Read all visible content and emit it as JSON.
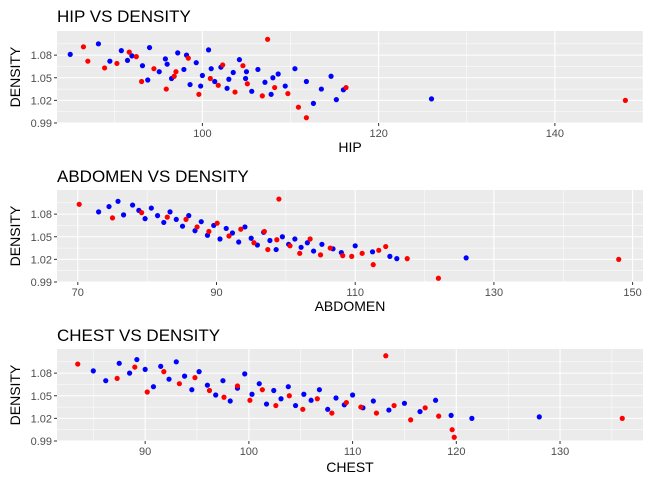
{
  "colors": {
    "panel_bg": "#ebebeb",
    "grid_major": "#ffffff",
    "series_a": "#ff0000",
    "series_b": "#0000ff",
    "tick_text": "#4d4d4d"
  },
  "chart_data": [
    {
      "type": "scatter",
      "title": "HIP VS DENSITY",
      "xlabel": "HIP",
      "ylabel": "DENSITY",
      "xlim": [
        83.5,
        150
      ],
      "ylim": [
        0.99,
        1.112
      ],
      "xticks": [
        100,
        120,
        140
      ],
      "xtick_labels": [
        "100",
        "120",
        "140"
      ],
      "yticks": [
        0.99,
        1.02,
        1.05,
        1.08
      ],
      "ytick_labels": [
        "0.99",
        "1.02",
        "1.05",
        "1.08"
      ],
      "grid": true,
      "legend": "none",
      "series": [
        {
          "color": "#0000ff",
          "points": [
            [
              85.0,
              1.081
            ],
            [
              88.2,
              1.095
            ],
            [
              89.5,
              1.072
            ],
            [
              90.8,
              1.086
            ],
            [
              92.0,
              1.079
            ],
            [
              93.2,
              1.066
            ],
            [
              94.0,
              1.09
            ],
            [
              95.1,
              1.058
            ],
            [
              95.8,
              1.075
            ],
            [
              96.5,
              1.049
            ],
            [
              97.2,
              1.083
            ],
            [
              97.9,
              1.061
            ],
            [
              98.6,
              1.041
            ],
            [
              99.3,
              1.07
            ],
            [
              100.0,
              1.053
            ],
            [
              100.7,
              1.087
            ],
            [
              101.4,
              1.045
            ],
            [
              102.1,
              1.064
            ],
            [
              102.8,
              1.036
            ],
            [
              103.5,
              1.057
            ],
            [
              104.2,
              1.074
            ],
            [
              104.9,
              1.049
            ],
            [
              105.6,
              1.032
            ],
            [
              106.3,
              1.061
            ],
            [
              107.1,
              1.044
            ],
            [
              107.8,
              1.028
            ],
            [
              108.6,
              1.055
            ],
            [
              109.4,
              1.039
            ],
            [
              110.5,
              1.062
            ],
            [
              111.8,
              1.045
            ],
            [
              112.6,
              1.016
            ],
            [
              113.5,
              1.035
            ],
            [
              114.6,
              1.052
            ],
            [
              115.2,
              1.021
            ],
            [
              116.0,
              1.034
            ],
            [
              126.0,
              1.022
            ],
            [
              91.5,
              1.073
            ],
            [
              93.8,
              1.047
            ],
            [
              96.0,
              1.068
            ],
            [
              98.2,
              1.08
            ],
            [
              99.8,
              1.039
            ],
            [
              101.0,
              1.062
            ],
            [
              103.0,
              1.048
            ],
            [
              105.0,
              1.058
            ],
            [
              108.0,
              1.05
            ]
          ]
        },
        {
          "color": "#ff0000",
          "points": [
            [
              86.5,
              1.091
            ],
            [
              87.0,
              1.072
            ],
            [
              88.9,
              1.063
            ],
            [
              90.3,
              1.069
            ],
            [
              91.7,
              1.084
            ],
            [
              93.1,
              1.045
            ],
            [
              94.5,
              1.062
            ],
            [
              95.9,
              1.035
            ],
            [
              97.0,
              1.058
            ],
            [
              98.4,
              1.076
            ],
            [
              99.6,
              1.028
            ],
            [
              100.9,
              1.049
            ],
            [
              102.3,
              1.067
            ],
            [
              103.7,
              1.031
            ],
            [
              105.1,
              1.042
            ],
            [
              106.8,
              1.026
            ],
            [
              108.2,
              1.037
            ],
            [
              109.7,
              1.029
            ],
            [
              110.9,
              1.011
            ],
            [
              111.8,
              0.997
            ],
            [
              116.3,
              1.037
            ],
            [
              148.0,
              1.02
            ],
            [
              92.5,
              1.078
            ],
            [
              96.8,
              1.052
            ],
            [
              101.8,
              1.04
            ],
            [
              104.6,
              1.066
            ],
            [
              107.4,
              1.101
            ]
          ]
        }
      ]
    },
    {
      "type": "scatter",
      "title": "ABDOMEN VS DENSITY",
      "xlabel": "ABDOMEN",
      "ylabel": "DENSITY",
      "xlim": [
        67,
        151.5
      ],
      "ylim": [
        0.99,
        1.112
      ],
      "xticks": [
        70,
        90,
        110,
        130,
        150
      ],
      "xtick_labels": [
        "70",
        "90",
        "110",
        "130",
        "150"
      ],
      "yticks": [
        0.99,
        1.02,
        1.05,
        1.08
      ],
      "ytick_labels": [
        "0.99",
        "1.02",
        "1.05",
        "1.08"
      ],
      "grid": true,
      "legend": "none",
      "series": [
        {
          "color": "#0000ff",
          "points": [
            [
              73.0,
              1.083
            ],
            [
              74.5,
              1.09
            ],
            [
              75.8,
              1.097
            ],
            [
              76.6,
              1.079
            ],
            [
              77.9,
              1.092
            ],
            [
              78.8,
              1.085
            ],
            [
              79.7,
              1.074
            ],
            [
              80.6,
              1.088
            ],
            [
              81.5,
              1.078
            ],
            [
              82.4,
              1.069
            ],
            [
              83.3,
              1.083
            ],
            [
              84.2,
              1.073
            ],
            [
              85.1,
              1.064
            ],
            [
              86.0,
              1.078
            ],
            [
              86.9,
              1.058
            ],
            [
              87.8,
              1.07
            ],
            [
              88.7,
              1.052
            ],
            [
              89.6,
              1.065
            ],
            [
              90.5,
              1.047
            ],
            [
              91.4,
              1.061
            ],
            [
              92.3,
              1.055
            ],
            [
              93.2,
              1.043
            ],
            [
              94.1,
              1.063
            ],
            [
              95.0,
              1.048
            ],
            [
              95.9,
              1.039
            ],
            [
              96.8,
              1.056
            ],
            [
              97.7,
              1.045
            ],
            [
              98.6,
              1.033
            ],
            [
              99.5,
              1.05
            ],
            [
              100.4,
              1.04
            ],
            [
              101.3,
              1.047
            ],
            [
              102.2,
              1.036
            ],
            [
              103.1,
              1.042
            ],
            [
              104.0,
              1.031
            ],
            [
              105.2,
              1.04
            ],
            [
              106.8,
              1.034
            ],
            [
              108.0,
              1.029
            ],
            [
              110.0,
              1.038
            ],
            [
              112.5,
              1.03
            ],
            [
              115.0,
              1.024
            ],
            [
              116.0,
              1.021
            ],
            [
              126.0,
              1.022
            ]
          ]
        },
        {
          "color": "#ff0000",
          "points": [
            [
              70.2,
              1.093
            ],
            [
              75.0,
              1.075
            ],
            [
              79.2,
              1.082
            ],
            [
              82.9,
              1.076
            ],
            [
              85.6,
              1.073
            ],
            [
              87.2,
              1.063
            ],
            [
              88.9,
              1.057
            ],
            [
              90.1,
              1.068
            ],
            [
              91.8,
              1.051
            ],
            [
              93.5,
              1.06
            ],
            [
              95.4,
              1.042
            ],
            [
              96.9,
              1.057
            ],
            [
              97.4,
              1.033
            ],
            [
              98.7,
              1.046
            ],
            [
              99.0,
              1.1
            ],
            [
              100.6,
              1.038
            ],
            [
              102.0,
              1.028
            ],
            [
              103.5,
              1.047
            ],
            [
              105.0,
              1.026
            ],
            [
              106.4,
              1.035
            ],
            [
              108.2,
              1.025
            ],
            [
              109.5,
              1.024
            ],
            [
              111.0,
              1.028
            ],
            [
              112.6,
              1.013
            ],
            [
              113.4,
              1.032
            ],
            [
              114.4,
              1.037
            ],
            [
              117.5,
              1.021
            ],
            [
              122.0,
              0.995
            ],
            [
              148.0,
              1.02
            ]
          ]
        }
      ]
    },
    {
      "type": "scatter",
      "title": "CHEST VS DENSITY",
      "xlabel": "CHEST",
      "ylabel": "DENSITY",
      "xlim": [
        81.5,
        138
      ],
      "ylim": [
        0.99,
        1.112
      ],
      "xticks": [
        90,
        100,
        110,
        120,
        130
      ],
      "xtick_labels": [
        "90",
        "100",
        "110",
        "120",
        "130"
      ],
      "yticks": [
        0.99,
        1.02,
        1.05,
        1.08
      ],
      "ytick_labels": [
        "0.99",
        "1.02",
        "1.05",
        "1.08"
      ],
      "grid": true,
      "legend": "none",
      "series": [
        {
          "color": "#0000ff",
          "points": [
            [
              85.0,
              1.083
            ],
            [
              86.2,
              1.07
            ],
            [
              87.5,
              1.093
            ],
            [
              88.5,
              1.08
            ],
            [
              89.2,
              1.098
            ],
            [
              90.0,
              1.085
            ],
            [
              90.8,
              1.062
            ],
            [
              91.5,
              1.089
            ],
            [
              92.3,
              1.072
            ],
            [
              93.0,
              1.095
            ],
            [
              93.8,
              1.076
            ],
            [
              94.5,
              1.058
            ],
            [
              95.2,
              1.082
            ],
            [
              96.0,
              1.064
            ],
            [
              96.8,
              1.051
            ],
            [
              97.5,
              1.07
            ],
            [
              98.2,
              1.043
            ],
            [
              98.9,
              1.06
            ],
            [
              99.6,
              1.079
            ],
            [
              100.3,
              1.052
            ],
            [
              101.0,
              1.066
            ],
            [
              101.7,
              1.039
            ],
            [
              102.4,
              1.057
            ],
            [
              103.1,
              1.046
            ],
            [
              103.8,
              1.062
            ],
            [
              104.5,
              1.037
            ],
            [
              105.3,
              1.052
            ],
            [
              106.0,
              1.044
            ],
            [
              106.8,
              1.058
            ],
            [
              107.6,
              1.032
            ],
            [
              108.4,
              1.047
            ],
            [
              109.2,
              1.038
            ],
            [
              110.0,
              1.051
            ],
            [
              111.0,
              1.034
            ],
            [
              112.0,
              1.043
            ],
            [
              113.5,
              1.031
            ],
            [
              115.0,
              1.04
            ],
            [
              116.5,
              1.029
            ],
            [
              118.0,
              1.044
            ],
            [
              119.5,
              1.024
            ],
            [
              121.5,
              1.02
            ],
            [
              128.0,
              1.022
            ]
          ]
        },
        {
          "color": "#ff0000",
          "points": [
            [
              83.5,
              1.092
            ],
            [
              87.3,
              1.073
            ],
            [
              89.0,
              1.088
            ],
            [
              90.2,
              1.055
            ],
            [
              91.8,
              1.082
            ],
            [
              93.3,
              1.066
            ],
            [
              94.8,
              1.074
            ],
            [
              96.2,
              1.057
            ],
            [
              97.6,
              1.048
            ],
            [
              98.9,
              1.063
            ],
            [
              100.1,
              1.044
            ],
            [
              101.3,
              1.058
            ],
            [
              102.6,
              1.037
            ],
            [
              103.9,
              1.05
            ],
            [
              105.2,
              1.032
            ],
            [
              106.6,
              1.046
            ],
            [
              108.0,
              1.027
            ],
            [
              109.4,
              1.041
            ],
            [
              110.8,
              1.035
            ],
            [
              112.3,
              1.027
            ],
            [
              113.2,
              1.103
            ],
            [
              114.0,
              1.037
            ],
            [
              115.6,
              1.018
            ],
            [
              117.0,
              1.034
            ],
            [
              118.3,
              1.023
            ],
            [
              119.6,
              1.005
            ],
            [
              119.8,
              0.995
            ],
            [
              136.0,
              1.02
            ]
          ]
        }
      ]
    }
  ]
}
